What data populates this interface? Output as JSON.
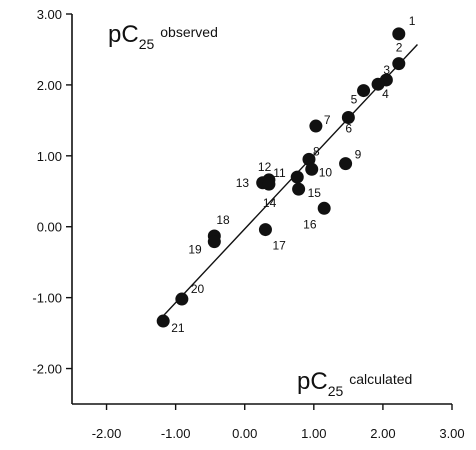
{
  "chart_data": {
    "type": "scatter",
    "title": "",
    "ylabel": {
      "main": "pC",
      "sub": "25",
      "word": "observed"
    },
    "xlabel": {
      "main": "pC",
      "sub": "25",
      "word": "calculated"
    },
    "xlim": [
      -2.5,
      3.0
    ],
    "ylim": [
      -2.5,
      3.0
    ],
    "x_ticks": [
      -2.0,
      -1.0,
      0.0,
      1.0,
      2.0,
      3.0
    ],
    "x_tick_labels": [
      "-2.00",
      "-1.00",
      "0.00",
      "1.00",
      "2.00",
      "3.00"
    ],
    "y_ticks": [
      -2.0,
      -1.0,
      0.0,
      1.0,
      2.0,
      3.0
    ],
    "y_tick_labels": [
      "-2.00",
      "-1.00",
      "0.00",
      "1.00",
      "2.00",
      "3.00"
    ],
    "grid": false,
    "legend": "none",
    "marker_color": "#111111",
    "points": [
      {
        "label": "1",
        "x": 2.23,
        "y": 2.72
      },
      {
        "label": "2",
        "x": 2.23,
        "y": 2.3
      },
      {
        "label": "3",
        "x": 2.05,
        "y": 2.07
      },
      {
        "label": "4",
        "x": 1.93,
        "y": 2.01
      },
      {
        "label": "5",
        "x": 1.72,
        "y": 1.92
      },
      {
        "label": "6",
        "x": 1.5,
        "y": 1.54
      },
      {
        "label": "7",
        "x": 1.03,
        "y": 1.42
      },
      {
        "label": "8",
        "x": 0.93,
        "y": 0.95
      },
      {
        "label": "9",
        "x": 1.46,
        "y": 0.89
      },
      {
        "label": "10",
        "x": 0.97,
        "y": 0.81
      },
      {
        "label": "11",
        "x": 0.76,
        "y": 0.7
      },
      {
        "label": "12",
        "x": 0.35,
        "y": 0.66
      },
      {
        "label": "13",
        "x": 0.26,
        "y": 0.62
      },
      {
        "label": "14",
        "x": 0.35,
        "y": 0.6
      },
      {
        "label": "15",
        "x": 0.78,
        "y": 0.53
      },
      {
        "label": "16",
        "x": 1.15,
        "y": 0.26
      },
      {
        "label": "17",
        "x": 0.3,
        "y": -0.04
      },
      {
        "label": "18",
        "x": -0.44,
        "y": -0.13
      },
      {
        "label": "19",
        "x": -0.44,
        "y": -0.21
      },
      {
        "label": "20",
        "x": -0.91,
        "y": -1.02
      },
      {
        "label": "21",
        "x": -1.18,
        "y": -1.33
      }
    ],
    "regression_line": {
      "x": [
        -1.22,
        2.5
      ],
      "y": [
        -1.3,
        2.57
      ]
    }
  }
}
